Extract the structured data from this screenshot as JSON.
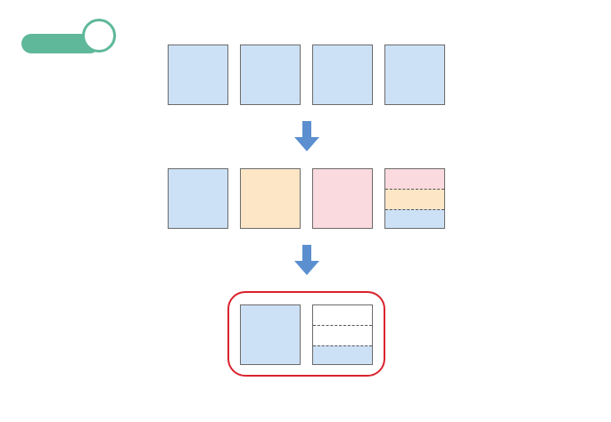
{
  "colors": {
    "toggle": "#5fb89a",
    "blue": "#cde1f6",
    "orange": "#fde6c5",
    "pink": "#fadadf",
    "arrow": "#5b8fcf",
    "highlight": "#d9232e"
  },
  "rows": {
    "top": [
      "blue",
      "blue",
      "blue",
      "blue"
    ],
    "middle": [
      "blue",
      "orange",
      "pink",
      "mixed"
    ],
    "bottom": [
      "blue",
      "partial"
    ]
  }
}
